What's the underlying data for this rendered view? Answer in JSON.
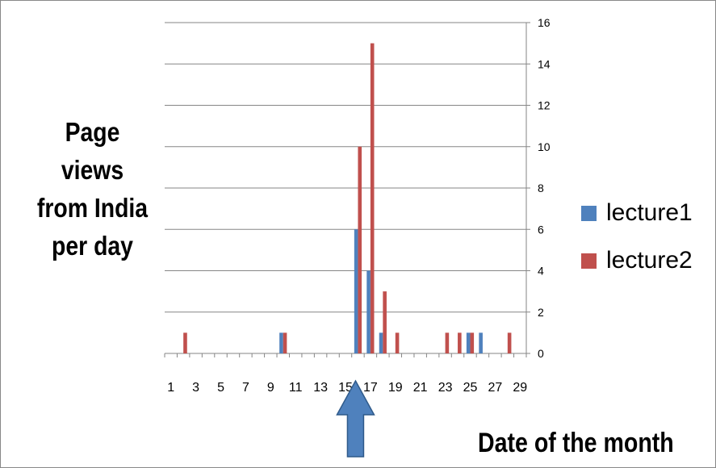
{
  "chart_data": {
    "type": "bar",
    "xlabel": "Date of the month",
    "ylabel_lines": [
      "Page",
      "views",
      "from India",
      "per day"
    ],
    "x_tick_labels": [
      "1",
      "3",
      "5",
      "7",
      "9",
      "11",
      "13",
      "15",
      "17",
      "19",
      "21",
      "23",
      "25",
      "27",
      "29"
    ],
    "ylim": [
      0,
      16
    ],
    "y_ticks": [
      0,
      2,
      4,
      6,
      8,
      10,
      12,
      14,
      16
    ],
    "y_axis_side": "right",
    "grid": true,
    "legend_position": "right",
    "categories": [
      1,
      2,
      3,
      4,
      5,
      6,
      7,
      8,
      9,
      10,
      11,
      12,
      13,
      14,
      15,
      16,
      17,
      18,
      19,
      20,
      21,
      22,
      23,
      24,
      25,
      26,
      27,
      28,
      29
    ],
    "series": [
      {
        "name": "lecture1",
        "color": "#4f81bd",
        "values": [
          0,
          0,
          0,
          0,
          0,
          0,
          0,
          0,
          0,
          1,
          0,
          0,
          0,
          0,
          0,
          6,
          4,
          1,
          0,
          0,
          0,
          0,
          0,
          0,
          1,
          1,
          0,
          0,
          0
        ]
      },
      {
        "name": "lecture2",
        "color": "#c0504d",
        "values": [
          0,
          1,
          0,
          0,
          0,
          0,
          0,
          0,
          0,
          1,
          0,
          0,
          0,
          0,
          0,
          10,
          15,
          3,
          1,
          0,
          0,
          0,
          1,
          1,
          1,
          0,
          0,
          1,
          0
        ]
      }
    ],
    "annotation": {
      "type": "arrow",
      "direction": "up",
      "points_to_day": 16,
      "color": "#4f81bd"
    }
  }
}
